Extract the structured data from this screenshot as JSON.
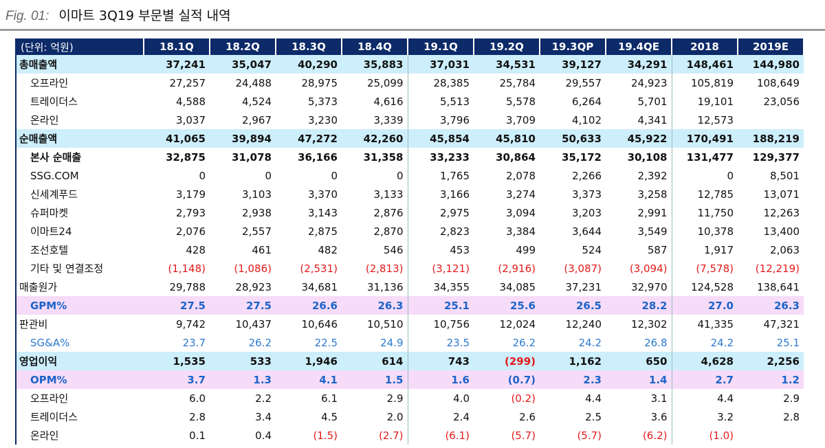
{
  "figure": {
    "label": "Fig. 01:",
    "title": "이마트 3Q19 부문별 실적 내역"
  },
  "table": {
    "header": [
      "(단위: 억원)",
      "18.1Q",
      "18.2Q",
      "18.3Q",
      "18.4Q",
      "19.1Q",
      "19.2Q",
      "19.3QP",
      "19.4QE",
      "2018",
      "2019E"
    ],
    "rows": [
      {
        "label": "총매출액",
        "values": [
          "37,241",
          "35,047",
          "40,290",
          "35,883",
          "37,031",
          "34,531",
          "39,127",
          "34,291",
          "148,461",
          "144,980"
        ]
      },
      {
        "label": "오프라인",
        "values": [
          "27,257",
          "24,488",
          "28,975",
          "25,099",
          "28,385",
          "25,784",
          "29,557",
          "24,923",
          "105,819",
          "108,649"
        ]
      },
      {
        "label": "트레이더스",
        "values": [
          "4,588",
          "4,524",
          "5,373",
          "4,616",
          "5,513",
          "5,578",
          "6,264",
          "5,701",
          "19,101",
          "23,056"
        ]
      },
      {
        "label": "온라인",
        "values": [
          "3,037",
          "2,967",
          "3,230",
          "3,339",
          "3,796",
          "3,709",
          "4,102",
          "4,341",
          "12,573",
          null
        ]
      },
      {
        "label": "순매출액",
        "values": [
          "41,065",
          "39,894",
          "47,272",
          "42,260",
          "45,854",
          "45,810",
          "50,633",
          "45,922",
          "170,491",
          "188,219"
        ]
      },
      {
        "label": "본사 순매출",
        "values": [
          "32,875",
          "31,078",
          "36,166",
          "31,358",
          "33,233",
          "30,864",
          "35,172",
          "30,108",
          "131,477",
          "129,377"
        ]
      },
      {
        "label": "SSG.COM",
        "values": [
          "0",
          "0",
          "0",
          "0",
          "1,765",
          "2,078",
          "2,266",
          "2,392",
          "0",
          "8,501"
        ]
      },
      {
        "label": "신세계푸드",
        "values": [
          "3,179",
          "3,103",
          "3,370",
          "3,133",
          "3,166",
          "3,274",
          "3,373",
          "3,258",
          "12,785",
          "13,071"
        ]
      },
      {
        "label": "슈퍼마켓",
        "values": [
          "2,793",
          "2,938",
          "3,143",
          "2,876",
          "2,975",
          "3,094",
          "3,203",
          "2,991",
          "11,750",
          "12,263"
        ]
      },
      {
        "label": "이마트24",
        "values": [
          "2,076",
          "2,557",
          "2,875",
          "2,870",
          "2,823",
          "3,384",
          "3,644",
          "3,549",
          "10,378",
          "13,400"
        ]
      },
      {
        "label": "조선호텔",
        "values": [
          "428",
          "461",
          "482",
          "546",
          "453",
          "499",
          "524",
          "587",
          "1,917",
          "2,063"
        ]
      },
      {
        "label": "기타 및 연결조정",
        "values": [
          "(1,148)",
          "(1,086)",
          "(2,531)",
          "(2,813)",
          "(3,121)",
          "(2,916)",
          "(3,087)",
          "(3,094)",
          "(7,578)",
          "(12,219)"
        ]
      },
      {
        "label": "매출원가",
        "values": [
          "29,788",
          "28,923",
          "34,681",
          "31,136",
          "34,355",
          "34,085",
          "37,231",
          "32,970",
          "124,528",
          "138,641"
        ]
      },
      {
        "label": "GPM%",
        "values": [
          "27.5",
          "27.5",
          "26.6",
          "26.3",
          "25.1",
          "25.6",
          "26.5",
          "28.2",
          "27.0",
          "26.3"
        ]
      },
      {
        "label": "판관비",
        "values": [
          "9,742",
          "10,437",
          "10,646",
          "10,510",
          "10,756",
          "12,024",
          "12,240",
          "12,302",
          "41,335",
          "47,321"
        ]
      },
      {
        "label": "SG&A%",
        "values": [
          "23.7",
          "26.2",
          "22.5",
          "24.9",
          "23.5",
          "26.2",
          "24.2",
          "26.8",
          "24.2",
          "25.1"
        ]
      },
      {
        "label": "영업이익",
        "values": [
          "1,535",
          "533",
          "1,946",
          "614",
          "743",
          "(299)",
          "1,162",
          "650",
          "4,628",
          "2,256"
        ]
      },
      {
        "label": "OPM%",
        "values": [
          "3.7",
          "1.3",
          "4.1",
          "1.5",
          "1.6",
          "(0.7)",
          "2.3",
          "1.4",
          "2.7",
          "1.2"
        ]
      },
      {
        "label": "오프라인",
        "values": [
          "6.0",
          "2.2",
          "6.1",
          "2.9",
          "4.0",
          "(0.2)",
          "4.4",
          "3.1",
          "4.4",
          "2.9"
        ]
      },
      {
        "label": "트레이더스",
        "values": [
          "2.8",
          "3.4",
          "4.5",
          "2.0",
          "2.4",
          "2.6",
          "2.5",
          "3.6",
          "3.2",
          "2.8"
        ]
      },
      {
        "label": "온라인",
        "values": [
          "0.1",
          "0.4",
          "(1.5)",
          "(2.7)",
          "(6.1)",
          "(5.7)",
          "(5.7)",
          "(6.2)",
          "(1.0)",
          null
        ]
      }
    ]
  }
}
